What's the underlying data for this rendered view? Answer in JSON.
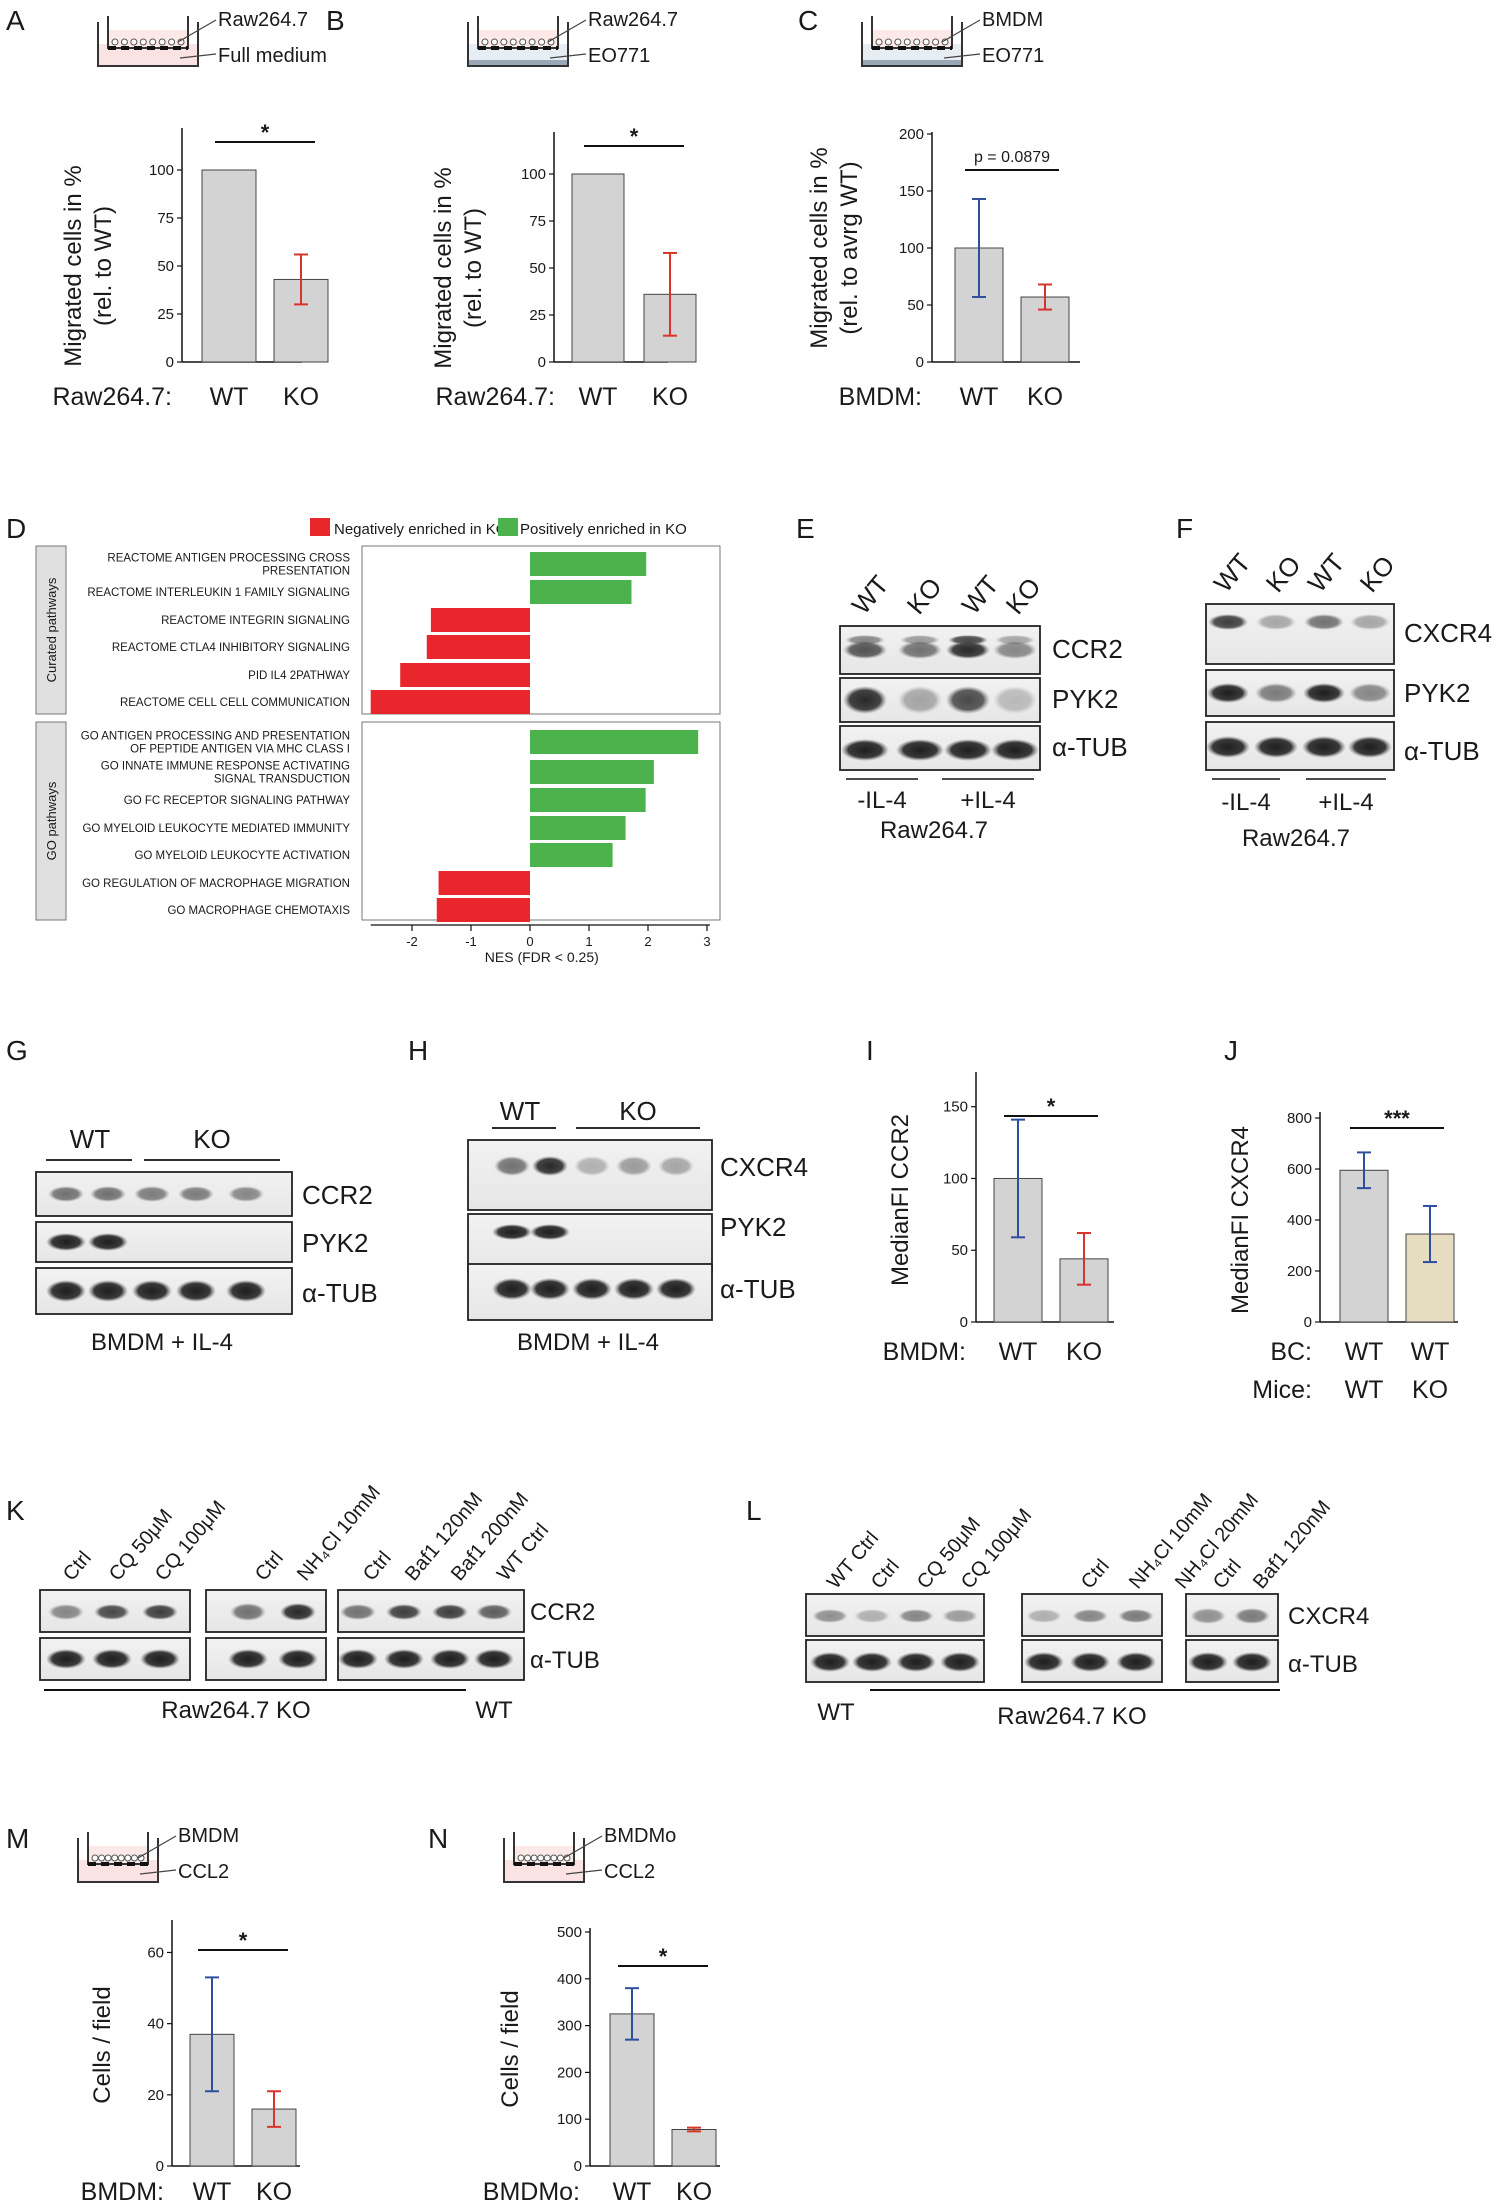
{
  "figure": {
    "panels": {
      "A": {
        "letter": "A",
        "schematic": {
          "cell": "Raw264.7",
          "bottom": "Full medium"
        },
        "ylabel": [
          "Migrated cells in %",
          "(rel. to WT)"
        ],
        "yticks": [
          "0",
          "25",
          "50",
          "75",
          "100"
        ],
        "group_label": "Raw264.7:",
        "categories": [
          "WT",
          "KO"
        ],
        "significance": "*"
      },
      "B": {
        "letter": "B",
        "schematic": {
          "cell": "Raw264.7",
          "bottom": "EO771"
        },
        "ylabel": [
          "Migrated cells in %",
          "(rel. to WT)"
        ],
        "yticks": [
          "0",
          "25",
          "50",
          "75",
          "100"
        ],
        "group_label": "Raw264.7:",
        "categories": [
          "WT",
          "KO"
        ],
        "significance": "*"
      },
      "C": {
        "letter": "C",
        "schematic": {
          "cell": "BMDM",
          "bottom": "EO771"
        },
        "ylabel": [
          "Migrated cells in %",
          "(rel. to avrg WT)"
        ],
        "yticks": [
          "0",
          "50",
          "100",
          "150",
          "200"
        ],
        "group_label": "BMDM:",
        "categories": [
          "WT",
          "KO"
        ],
        "significance": "p = 0.0879"
      },
      "D": {
        "letter": "D",
        "legend_neg": "Negatively enriched in KO",
        "legend_pos": "Positively enriched in KO",
        "group1_label": "Curated pathways",
        "group2_label": "GO pathways",
        "xlabel": "NES (FDR < 0.25)",
        "xticks": [
          "-2",
          "-1",
          "0",
          "1",
          "2",
          "3"
        ]
      },
      "E": {
        "letter": "E",
        "lanes": [
          "WT",
          "KO",
          "WT",
          "KO"
        ],
        "rows": [
          "CCR2",
          "PYK2",
          "α-TUB"
        ],
        "conditions": [
          "-IL-4",
          "+IL-4"
        ],
        "cell": "Raw264.7"
      },
      "F": {
        "letter": "F",
        "lanes": [
          "WT",
          "KO",
          "WT",
          "KO"
        ],
        "rows": [
          "CXCR4",
          "PYK2",
          "α-TUB"
        ],
        "conditions": [
          "-IL-4",
          "+IL-4"
        ],
        "cell": "Raw264.7"
      },
      "G": {
        "letter": "G",
        "groups": [
          "WT",
          "KO"
        ],
        "rows": [
          "CCR2",
          "PYK2",
          "α-TUB"
        ],
        "caption": "BMDM + IL-4"
      },
      "H": {
        "letter": "H",
        "groups": [
          "WT",
          "KO"
        ],
        "rows": [
          "CXCR4",
          "PYK2",
          "α-TUB"
        ],
        "caption": "BMDM + IL-4"
      },
      "I": {
        "letter": "I",
        "ylabel": "MedianFI CCR2",
        "yticks": [
          "0",
          "50",
          "100",
          "150"
        ],
        "group_label": "BMDM:",
        "categories": [
          "WT",
          "KO"
        ],
        "significance": "*"
      },
      "J": {
        "letter": "J",
        "ylabel": "MedianFI CXCR4",
        "yticks": [
          "0",
          "200",
          "400",
          "600",
          "800"
        ],
        "row1_label": "BC:",
        "row1": [
          "WT",
          "WT"
        ],
        "row2_label": "Mice:",
        "row2": [
          "WT",
          "KO"
        ],
        "significance": "***"
      },
      "K": {
        "letter": "K",
        "lanes": [
          "Ctrl",
          "CQ 50μM",
          "CQ 100μM",
          "Ctrl",
          "NH₄Cl 10mM",
          "Ctrl",
          "Baf1 120nM",
          "Baf1 200nM",
          "WT Ctrl"
        ],
        "rows": [
          "CCR2",
          "α-TUB"
        ],
        "ko_label": "Raw264.7 KO",
        "wt_label": "WT"
      },
      "L": {
        "letter": "L",
        "lanes": [
          "WT Ctrl",
          "Ctrl",
          "CQ 50μM",
          "CQ 100μM",
          "Ctrl",
          "NH₄Cl 10mM",
          "NH₄Cl 20mM",
          "Ctrl",
          "Baf1 120nM"
        ],
        "rows": [
          "CXCR4",
          "α-TUB"
        ],
        "wt_label": "WT",
        "ko_label": "Raw264.7 KO"
      },
      "M": {
        "letter": "M",
        "schematic": {
          "cell": "BMDM",
          "bottom": "CCL2"
        },
        "ylabel": "Cells / field",
        "yticks": [
          "0",
          "20",
          "40",
          "60"
        ],
        "group_label": "BMDM:",
        "categories": [
          "WT",
          "KO"
        ],
        "significance": "*"
      },
      "N": {
        "letter": "N",
        "schematic": {
          "cell": "BMDMo",
          "bottom": "CCL2"
        },
        "ylabel": "Cells / field",
        "yticks": [
          "0",
          "100",
          "200",
          "300",
          "400",
          "500"
        ],
        "group_label": "BMDMo:",
        "categories": [
          "WT",
          "KO"
        ],
        "significance": "*"
      }
    }
  },
  "chart_data": [
    {
      "panel": "A",
      "type": "bar",
      "categories": [
        "WT",
        "KO"
      ],
      "values": [
        100,
        43
      ],
      "error_low": [
        0,
        30
      ],
      "error_high": [
        0,
        56
      ],
      "ylim": [
        0,
        100
      ],
      "ylabel": "Migrated cells in % (rel. to WT)",
      "colors": [
        "#d3d3d3",
        "#d3d3d3"
      ],
      "error_colors": [
        "#2e4f9e",
        "#d9342b"
      ]
    },
    {
      "panel": "B",
      "type": "bar",
      "categories": [
        "WT",
        "KO"
      ],
      "values": [
        100,
        36
      ],
      "error_low": [
        0,
        14
      ],
      "error_high": [
        0,
        58
      ],
      "ylim": [
        0,
        100
      ],
      "ylabel": "Migrated cells in % (rel. to WT)",
      "colors": [
        "#d3d3d3",
        "#d3d3d3"
      ],
      "error_colors": [
        "#2e4f9e",
        "#d9342b"
      ]
    },
    {
      "panel": "C",
      "type": "bar",
      "categories": [
        "WT",
        "KO"
      ],
      "values": [
        100,
        57
      ],
      "error_low": [
        57,
        46
      ],
      "error_high": [
        143,
        68
      ],
      "ylim": [
        0,
        200
      ],
      "ylabel": "Migrated cells in % (rel. to avrg WT)",
      "colors": [
        "#d3d3d3",
        "#d3d3d3"
      ],
      "error_colors": [
        "#2e4f9e",
        "#d9342b"
      ]
    },
    {
      "panel": "D",
      "type": "bar",
      "orientation": "horizontal",
      "xlim": [
        -2.7,
        3.1
      ],
      "xlabel": "NES (FDR < 0.25)",
      "groups": [
        {
          "name": "Curated pathways",
          "pathways": [
            {
              "label": [
                "REACTOME ANTIGEN PROCESSING CROSS",
                "PRESENTATION"
              ],
              "value": 1.97
            },
            {
              "label": [
                "REACTOME INTERLEUKIN 1 FAMILY SIGNALING"
              ],
              "value": 1.72
            },
            {
              "label": [
                "REACTOME INTEGRIN SIGNALING"
              ],
              "value": -1.68
            },
            {
              "label": [
                "REACTOME CTLA4 INHIBITORY SIGNALING"
              ],
              "value": -1.75
            },
            {
              "label": [
                "PID IL4 2PATHWAY"
              ],
              "value": -2.2
            },
            {
              "label": [
                "REACTOME CELL CELL COMMUNICATION"
              ],
              "value": -2.7
            }
          ]
        },
        {
          "name": "GO pathways",
          "pathways": [
            {
              "label": [
                "GO ANTIGEN PROCESSING AND PRESENTATION",
                "OF PEPTIDE ANTIGEN VIA MHC CLASS I"
              ],
              "value": 2.85
            },
            {
              "label": [
                "GO INNATE IMMUNE RESPONSE ACTIVATING",
                "SIGNAL TRANSDUCTION"
              ],
              "value": 2.1
            },
            {
              "label": [
                "GO FC RECEPTOR SIGNALING PATHWAY"
              ],
              "value": 1.96
            },
            {
              "label": [
                "GO MYELOID LEUKOCYTE MEDIATED IMMUNITY"
              ],
              "value": 1.62
            },
            {
              "label": [
                "GO MYELOID LEUKOCYTE ACTIVATION"
              ],
              "value": 1.4
            },
            {
              "label": [
                "GO REGULATION OF MACROPHAGE MIGRATION"
              ],
              "value": -1.55
            },
            {
              "label": [
                "GO MACROPHAGE CHEMOTAXIS"
              ],
              "value": -1.58
            }
          ]
        }
      ],
      "pos_color": "#4cb24c",
      "neg_color": "#e8262c"
    },
    {
      "panel": "I",
      "type": "bar",
      "categories": [
        "WT",
        "KO"
      ],
      "values": [
        100,
        44
      ],
      "error_low": [
        59,
        26
      ],
      "error_high": [
        141,
        62
      ],
      "ylim": [
        0,
        170
      ],
      "ylabel": "MedianFI CCR2",
      "colors": [
        "#d3d3d3",
        "#d3d3d3"
      ],
      "error_colors": [
        "#2e4f9e",
        "#d9342b"
      ]
    },
    {
      "panel": "J",
      "type": "bar",
      "categories": [
        "WT/WT",
        "WT/KO"
      ],
      "values": [
        595,
        345
      ],
      "error_low": [
        525,
        235
      ],
      "error_high": [
        665,
        455
      ],
      "ylim": [
        0,
        800
      ],
      "ylabel": "MedianFI CXCR4",
      "colors": [
        "#d3d3d3",
        "#e6dcc0"
      ],
      "error_colors": [
        "#2e4f9e",
        "#2e4f9e"
      ]
    },
    {
      "panel": "M",
      "type": "bar",
      "categories": [
        "WT",
        "KO"
      ],
      "values": [
        37,
        16
      ],
      "error_low": [
        21,
        11
      ],
      "error_high": [
        53,
        21
      ],
      "ylim": [
        0,
        68
      ],
      "ylabel": "Cells / field",
      "colors": [
        "#d3d3d3",
        "#d3d3d3"
      ],
      "error_colors": [
        "#2e4f9e",
        "#d9342b"
      ]
    },
    {
      "panel": "N",
      "type": "bar",
      "categories": [
        "WT",
        "KO"
      ],
      "values": [
        325,
        78
      ],
      "error_low": [
        270,
        74
      ],
      "error_high": [
        380,
        82
      ],
      "ylim": [
        0,
        500
      ],
      "ylabel": "Cells / field",
      "colors": [
        "#d3d3d3",
        "#d3d3d3"
      ],
      "error_colors": [
        "#2e4f9e",
        "#d9342b"
      ]
    }
  ]
}
